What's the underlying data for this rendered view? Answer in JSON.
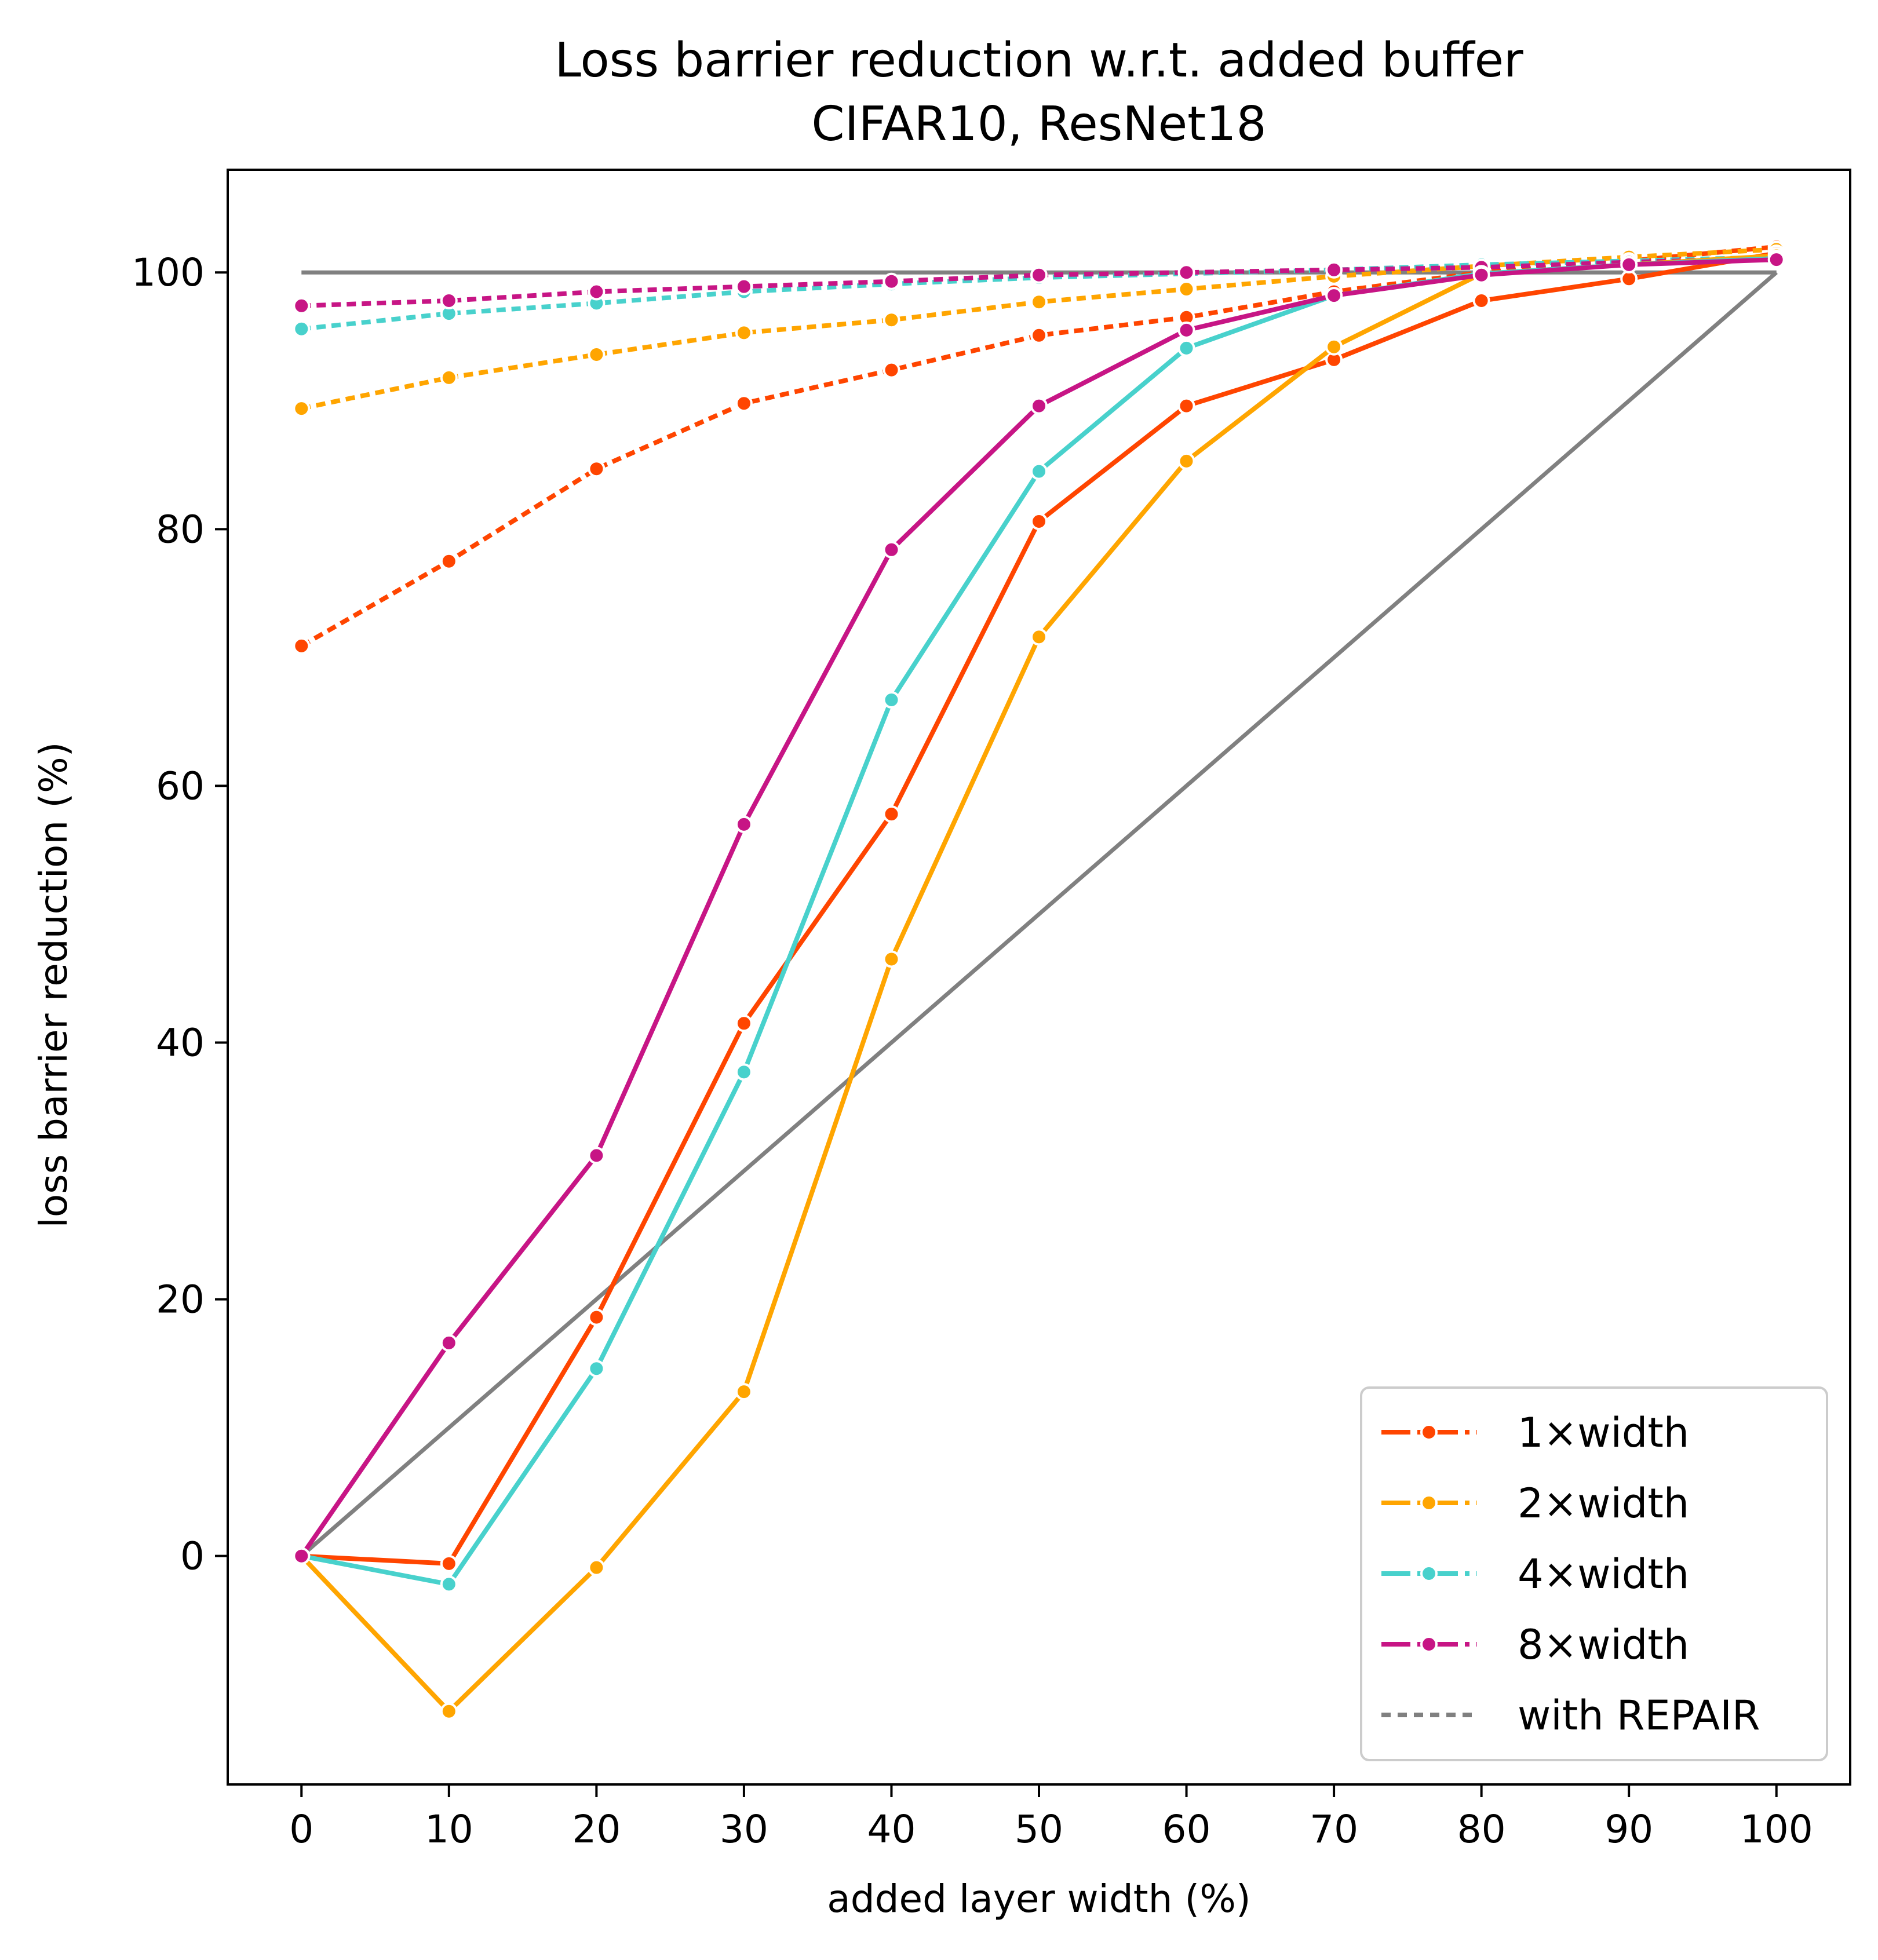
{
  "chart_data": {
    "type": "line",
    "title": "Loss barrier reduction w.r.t. added buffer",
    "subtitle": "CIFAR10, ResNet18",
    "xlabel": "added layer width (%)",
    "ylabel": "loss barrier reduction (%)",
    "xlim": [
      -5,
      105
    ],
    "ylim": [
      -17.8,
      108
    ],
    "x": [
      0,
      10,
      20,
      30,
      40,
      50,
      60,
      70,
      80,
      90,
      100
    ],
    "x_ticks": [
      "0",
      "10",
      "20",
      "30",
      "40",
      "50",
      "60",
      "70",
      "80",
      "90",
      "100"
    ],
    "y_ticks": [
      "0",
      "20",
      "40",
      "60",
      "80",
      "100"
    ],
    "y_tick_values": [
      0,
      20,
      40,
      60,
      80,
      100
    ],
    "grid": false,
    "legend_position": "lower-right",
    "reference_lines": [
      {
        "kind": "horizontal",
        "x": [
          0,
          100
        ],
        "y": [
          100,
          100
        ],
        "color": "#808080"
      },
      {
        "kind": "diagonal",
        "x": [
          0,
          100
        ],
        "y": [
          0,
          100
        ],
        "color": "#808080"
      }
    ],
    "series": [
      {
        "name": "1×width",
        "color": "#FF4500",
        "style": "solid",
        "values": [
          0,
          -0.6,
          18.6,
          41.5,
          57.8,
          80.6,
          89.6,
          93.2,
          97.8,
          99.5,
          101.5
        ]
      },
      {
        "name": "2×width",
        "color": "#FFA500",
        "style": "solid",
        "values": [
          0,
          -12.1,
          -0.9,
          12.8,
          46.5,
          71.6,
          85.3,
          94.2,
          99.9,
          100.6,
          101.3
        ]
      },
      {
        "name": "4×width",
        "color": "#48D1CC",
        "style": "solid",
        "values": [
          0,
          -2.2,
          14.6,
          37.7,
          66.7,
          84.5,
          94.1,
          98.2,
          99.9,
          100.6,
          101.1
        ]
      },
      {
        "name": "8×width",
        "color": "#C71585",
        "style": "solid",
        "values": [
          0,
          16.6,
          31.2,
          57.0,
          78.4,
          89.6,
          95.5,
          98.2,
          99.8,
          100.6,
          101.0
        ]
      },
      {
        "name": "1×width with REPAIR",
        "color": "#FF4500",
        "style": "dotted",
        "values": [
          70.9,
          77.5,
          84.7,
          89.8,
          92.4,
          95.1,
          96.5,
          98.5,
          100.0,
          100.9,
          102.0
        ]
      },
      {
        "name": "2×width with REPAIR",
        "color": "#FFA500",
        "style": "dotted",
        "values": [
          89.4,
          91.8,
          93.6,
          95.3,
          96.3,
          97.7,
          98.7,
          99.7,
          100.5,
          101.2,
          101.8
        ]
      },
      {
        "name": "4×width with REPAIR",
        "color": "#48D1CC",
        "style": "dotted",
        "values": [
          95.6,
          96.8,
          97.6,
          98.5,
          99.1,
          99.6,
          99.9,
          100.2,
          100.6,
          100.9,
          101.2
        ]
      },
      {
        "name": "8×width with REPAIR",
        "color": "#C71585",
        "style": "dotted",
        "values": [
          97.4,
          97.8,
          98.5,
          98.9,
          99.3,
          99.8,
          100.0,
          100.2,
          100.4,
          100.8,
          101.1
        ]
      }
    ],
    "legend": [
      {
        "label": "1×width",
        "color": "#FF4500",
        "style": "dashdot"
      },
      {
        "label": "2×width",
        "color": "#FFA500",
        "style": "dashdot"
      },
      {
        "label": "4×width",
        "color": "#48D1CC",
        "style": "dashdot"
      },
      {
        "label": "8×width",
        "color": "#C71585",
        "style": "dashdot"
      },
      {
        "label": "with REPAIR",
        "color": "#808080",
        "style": "dotted"
      }
    ]
  }
}
